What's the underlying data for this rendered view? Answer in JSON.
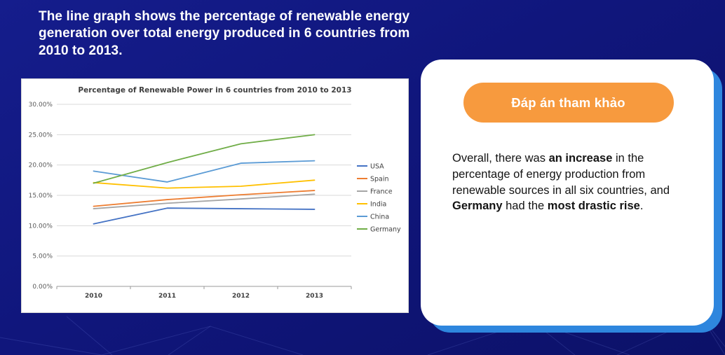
{
  "page": {
    "intro": "The line graph shows the percentage of renewable energy generation over total energy produced in 6 countries from 2010 to 2013."
  },
  "answer_card": {
    "button_label": "Đáp án tham khảo",
    "button_color": "#f79a3e",
    "backing_color": "#2e86de",
    "segments": {
      "seg1": "Overall, there was ",
      "seg2": "an increase",
      "seg3": " in the percentage of energy production from renewable sources in all six countries, and ",
      "seg4": "Germany",
      "seg5": " had the ",
      "seg6": "most drastic rise",
      "seg7": "."
    }
  },
  "chart_data": {
    "type": "line",
    "title": "Percentage of Renewable Power in 6 countries from 2010 to 2013",
    "categories": [
      "2010",
      "2011",
      "2012",
      "2013"
    ],
    "series": [
      {
        "name": "USA",
        "color": "#4472C4",
        "values": [
          10.3,
          12.9,
          12.8,
          12.7
        ]
      },
      {
        "name": "Spain",
        "color": "#ED7D31",
        "values": [
          13.2,
          14.3,
          15.1,
          15.8
        ]
      },
      {
        "name": "France",
        "color": "#A5A5A5",
        "values": [
          12.8,
          13.7,
          14.4,
          15.2
        ]
      },
      {
        "name": "India",
        "color": "#FFC000",
        "values": [
          17.1,
          16.2,
          16.5,
          17.5
        ]
      },
      {
        "name": "China",
        "color": "#5B9BD5",
        "values": [
          19.0,
          17.2,
          20.3,
          20.7
        ]
      },
      {
        "name": "Germany",
        "color": "#70AD47",
        "values": [
          17.0,
          20.4,
          23.5,
          25.0
        ]
      }
    ],
    "y_ticks": [
      "0.00%",
      "5.00%",
      "10.00%",
      "15.00%",
      "20.00%",
      "25.00%",
      "30.00%"
    ],
    "ylim": [
      0,
      30
    ],
    "grid": true,
    "legend_position": "right"
  }
}
